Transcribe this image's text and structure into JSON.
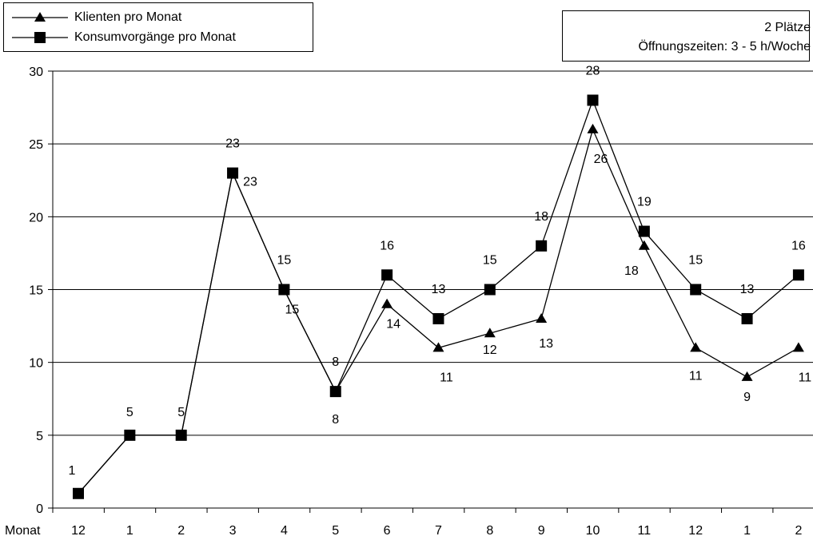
{
  "legend": {
    "series1": "Klienten pro Monat",
    "series2": "Konsumvorgänge pro Monat"
  },
  "info": {
    "line1": "2 Plätze",
    "line2": "Öffnungszeiten: 3 - 5 h/Woche"
  },
  "chart_data": {
    "type": "line",
    "xlabel": "Monat",
    "categories": [
      "12",
      "1",
      "2",
      "3",
      "4",
      "5",
      "6",
      "7",
      "8",
      "9",
      "10",
      "11",
      "12",
      "1",
      "2"
    ],
    "ylim": [
      0,
      30
    ],
    "yticks": [
      0,
      5,
      10,
      15,
      20,
      25,
      30
    ],
    "grid": "horizontal",
    "legend_position": "top-left",
    "series": [
      {
        "name": "Klienten pro Monat",
        "marker": "triangle",
        "values": [
          1,
          5,
          5,
          23,
          15,
          8,
          14,
          11,
          12,
          13,
          26,
          18,
          11,
          9,
          11
        ]
      },
      {
        "name": "Konsumvorgänge pro Monat",
        "marker": "square",
        "values": [
          1,
          5,
          5,
          23,
          15,
          8,
          16,
          13,
          15,
          18,
          28,
          19,
          15,
          13,
          16
        ]
      }
    ]
  }
}
